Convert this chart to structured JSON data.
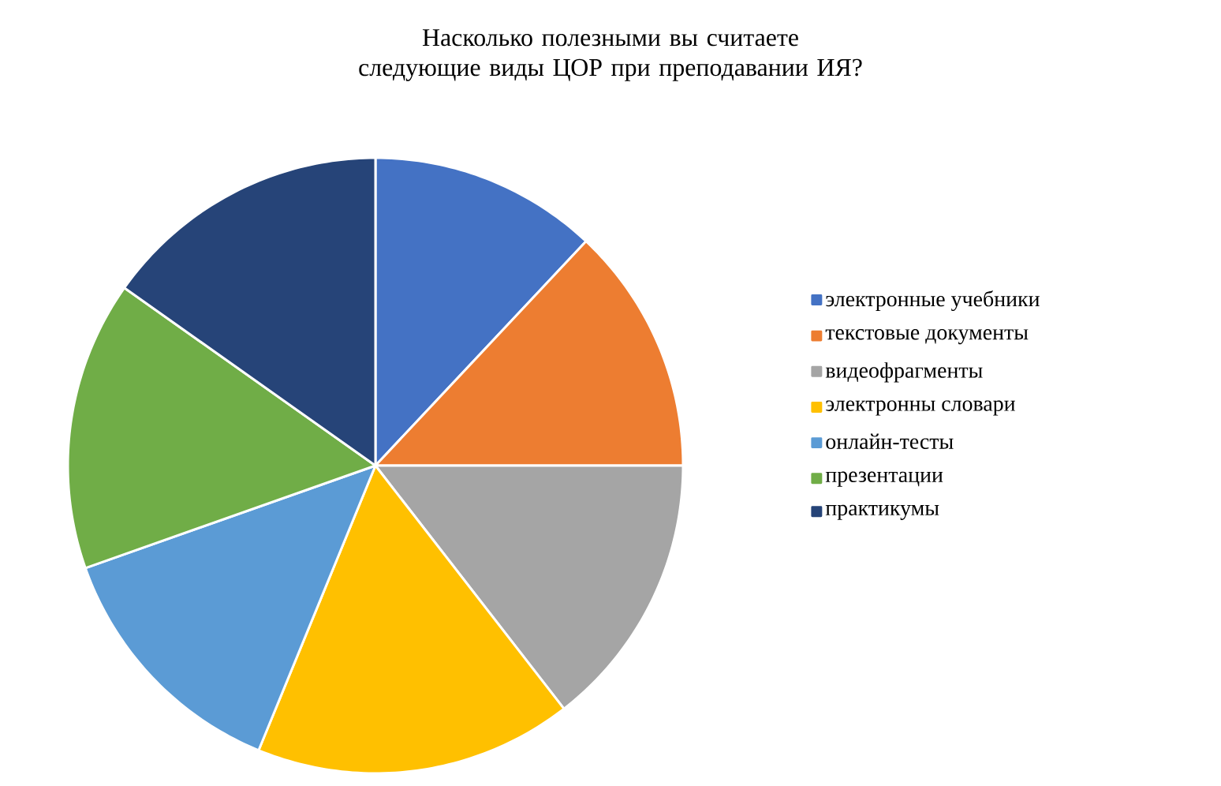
{
  "chart_data": {
    "type": "pie",
    "title": "Насколько полезными вы считаете следующие виды ЦОР при преподавании ИЯ?",
    "categories": [
      "электронные учебники",
      "текстовые документы",
      "видеофрагменты",
      "электронны словари",
      "онлайн-тесты",
      "презентации",
      "практикумы"
    ],
    "values": [
      12,
      13,
      14.5,
      16.7,
      13.4,
      15.2,
      15.2
    ],
    "colors": [
      "#4472c4",
      "#ed7d31",
      "#a5a5a5",
      "#ffc000",
      "#5b9bd5",
      "#70ad47",
      "#264478"
    ],
    "legend": "right"
  }
}
